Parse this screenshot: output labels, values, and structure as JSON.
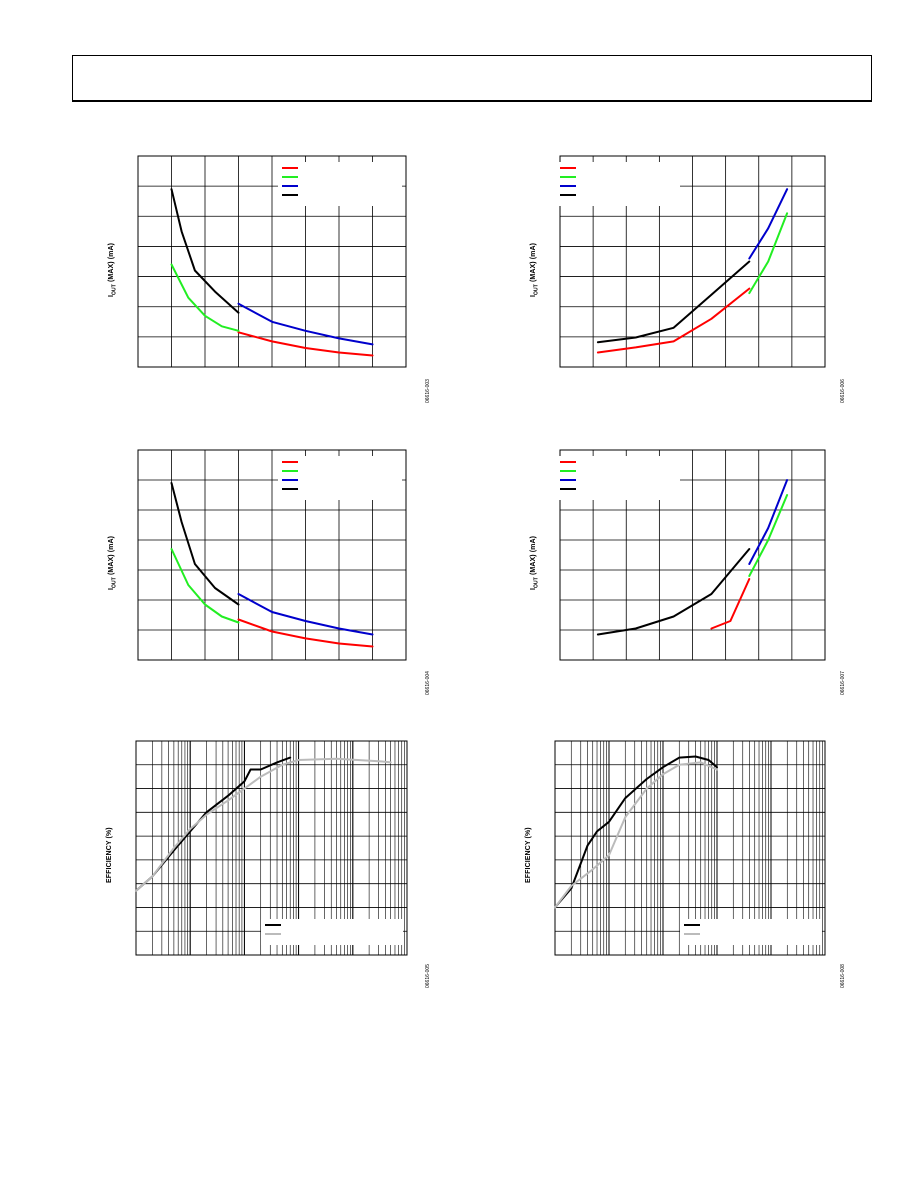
{
  "page": {
    "header": ""
  },
  "colors": {
    "red": "#ff0000",
    "green": "#22ee22",
    "blue": "#0000cc",
    "black": "#000000",
    "gray": "#bbbbbb"
  },
  "chart_data": [
    {
      "id": "fig-003",
      "type": "line",
      "ylabel_main": "I",
      "ylabel_sub": "OUT",
      "ylabel_rest": " (MAX) (mA)",
      "figure_id": "06616-003",
      "grid": true,
      "xscale": "linear",
      "xlim": [
        0,
        8
      ],
      "ylim": [
        0,
        7
      ],
      "legend": "top-right",
      "series": [
        {
          "color": "#ff0000",
          "points": [
            [
              3,
              1.15
            ],
            [
              4,
              0.85
            ],
            [
              5,
              0.63
            ],
            [
              6,
              0.48
            ],
            [
              7,
              0.38
            ]
          ]
        },
        {
          "color": "#22ee22",
          "points": [
            [
              1,
              3.4
            ],
            [
              1.5,
              2.3
            ],
            [
              2,
              1.7
            ],
            [
              2.5,
              1.35
            ],
            [
              3,
              1.2
            ]
          ]
        },
        {
          "color": "#0000cc",
          "points": [
            [
              3,
              2.1
            ],
            [
              4,
              1.5
            ],
            [
              5,
              1.2
            ],
            [
              6,
              0.95
            ],
            [
              7,
              0.75
            ]
          ]
        },
        {
          "color": "#000000",
          "points": [
            [
              1,
              5.9
            ],
            [
              1.3,
              4.5
            ],
            [
              1.7,
              3.2
            ],
            [
              2.3,
              2.5
            ],
            [
              3,
              1.8
            ]
          ]
        }
      ]
    },
    {
      "id": "fig-006",
      "type": "line",
      "ylabel_main": "I",
      "ylabel_sub": "OUT",
      "ylabel_rest": " (MAX) (mA)",
      "figure_id": "06616-006",
      "grid": true,
      "xscale": "linear",
      "xlim": [
        0,
        7
      ],
      "ylim": [
        0,
        7
      ],
      "legend": "top-left",
      "series": [
        {
          "color": "#ff0000",
          "points": [
            [
              1,
              0.48
            ],
            [
              2,
              0.65
            ],
            [
              3,
              0.85
            ],
            [
              4,
              1.6
            ],
            [
              5,
              2.6
            ]
          ]
        },
        {
          "color": "#22ee22",
          "points": [
            [
              5,
              2.45
            ],
            [
              5.5,
              3.5
            ],
            [
              6,
              5.1
            ]
          ]
        },
        {
          "color": "#0000cc",
          "points": [
            [
              5,
              3.6
            ],
            [
              5.5,
              4.6
            ],
            [
              6,
              5.9
            ]
          ]
        },
        {
          "color": "#000000",
          "points": [
            [
              1,
              0.82
            ],
            [
              2,
              0.98
            ],
            [
              3,
              1.3
            ],
            [
              4,
              2.4
            ],
            [
              5,
              3.5
            ]
          ]
        }
      ]
    },
    {
      "id": "fig-004",
      "type": "line",
      "ylabel_main": "I",
      "ylabel_sub": "OUT",
      "ylabel_rest": " (MAX) (mA)",
      "figure_id": "06616-004",
      "grid": true,
      "xscale": "linear",
      "xlim": [
        0,
        8
      ],
      "ylim": [
        0,
        7
      ],
      "legend": "top-right",
      "series": [
        {
          "color": "#ff0000",
          "points": [
            [
              3,
              1.35
            ],
            [
              4,
              0.95
            ],
            [
              5,
              0.72
            ],
            [
              6,
              0.55
            ],
            [
              7,
              0.45
            ]
          ]
        },
        {
          "color": "#22ee22",
          "points": [
            [
              1,
              3.7
            ],
            [
              1.5,
              2.5
            ],
            [
              2,
              1.85
            ],
            [
              2.5,
              1.45
            ],
            [
              3,
              1.25
            ]
          ]
        },
        {
          "color": "#0000cc",
          "points": [
            [
              3,
              2.2
            ],
            [
              4,
              1.6
            ],
            [
              5,
              1.3
            ],
            [
              6,
              1.05
            ],
            [
              7,
              0.85
            ]
          ]
        },
        {
          "color": "#000000",
          "points": [
            [
              1,
              5.9
            ],
            [
              1.3,
              4.6
            ],
            [
              1.7,
              3.2
            ],
            [
              2.3,
              2.4
            ],
            [
              3,
              1.85
            ]
          ]
        }
      ]
    },
    {
      "id": "fig-007",
      "type": "line",
      "ylabel_main": "I",
      "ylabel_sub": "OUT",
      "ylabel_rest": " (MAX) (mA)",
      "figure_id": "06616-007",
      "grid": true,
      "xscale": "linear",
      "xlim": [
        0,
        7
      ],
      "ylim": [
        0,
        7
      ],
      "legend": "top-left",
      "series": [
        {
          "color": "#ff0000",
          "points": [
            [
              4,
              1.05
            ],
            [
              4.5,
              1.3
            ],
            [
              5,
              2.7
            ]
          ]
        },
        {
          "color": "#22ee22",
          "points": [
            [
              5,
              2.8
            ],
            [
              5.5,
              4.0
            ],
            [
              6,
              5.5
            ]
          ]
        },
        {
          "color": "#0000cc",
          "points": [
            [
              5,
              3.2
            ],
            [
              5.5,
              4.4
            ],
            [
              6,
              6.0
            ]
          ]
        },
        {
          "color": "#000000",
          "points": [
            [
              1,
              0.85
            ],
            [
              2,
              1.05
            ],
            [
              3,
              1.45
            ],
            [
              4,
              2.2
            ],
            [
              5,
              3.7
            ]
          ]
        }
      ]
    },
    {
      "id": "fig-005",
      "type": "line",
      "ylabel_main": "EFFICIENCY (%)",
      "ylabel_sub": "",
      "ylabel_rest": "",
      "figure_id": "06616-005",
      "grid": true,
      "xscale": "log",
      "xlim": [
        0.01,
        1000
      ],
      "ylim": [
        0,
        9
      ],
      "legend": "bottom-right",
      "series": [
        {
          "color": "#000000",
          "points": [
            [
              0.01,
              2.7
            ],
            [
              0.02,
              3.3
            ],
            [
              0.05,
              4.4
            ],
            [
              0.1,
              5.2
            ],
            [
              0.2,
              6.0
            ],
            [
              0.5,
              6.7
            ],
            [
              1.0,
              7.3
            ],
            [
              1.3,
              7.8
            ],
            [
              2.0,
              7.8
            ],
            [
              4.0,
              8.1
            ],
            [
              7.0,
              8.3
            ]
          ]
        },
        {
          "color": "#bbbbbb",
          "points": [
            [
              0.01,
              2.7
            ],
            [
              0.02,
              3.3
            ],
            [
              0.05,
              4.5
            ],
            [
              0.1,
              5.3
            ],
            [
              0.2,
              5.9
            ],
            [
              0.5,
              6.5
            ],
            [
              1.0,
              7.0
            ],
            [
              2.0,
              7.5
            ],
            [
              5.0,
              8.0
            ],
            [
              10.0,
              8.2
            ],
            [
              50.0,
              8.25
            ],
            [
              300.0,
              8.15
            ],
            [
              500.0,
              8.1
            ]
          ]
        }
      ]
    },
    {
      "id": "fig-008",
      "type": "line",
      "ylabel_main": "EFFICIENCY (%)",
      "ylabel_sub": "",
      "ylabel_rest": "",
      "figure_id": "06616-008",
      "grid": true,
      "xscale": "log",
      "xlim": [
        0.01,
        1000
      ],
      "ylim": [
        0,
        9
      ],
      "legend": "bottom-right",
      "series": [
        {
          "color": "#000000",
          "points": [
            [
              0.01,
              2.0
            ],
            [
              0.02,
              2.8
            ],
            [
              0.04,
              4.6
            ],
            [
              0.06,
              5.2
            ],
            [
              0.1,
              5.6
            ],
            [
              0.2,
              6.6
            ],
            [
              0.5,
              7.4
            ],
            [
              1.0,
              7.9
            ],
            [
              2.0,
              8.3
            ],
            [
              4.0,
              8.35
            ],
            [
              7.0,
              8.2
            ],
            [
              10.0,
              7.9
            ]
          ]
        },
        {
          "color": "#bbbbbb",
          "points": [
            [
              0.01,
              2.0
            ],
            [
              0.02,
              2.9
            ],
            [
              0.05,
              3.6
            ],
            [
              0.1,
              4.2
            ],
            [
              0.2,
              5.8
            ],
            [
              0.5,
              7.0
            ],
            [
              1.0,
              7.6
            ],
            [
              2.0,
              8.0
            ],
            [
              5.0,
              8.1
            ],
            [
              10.0,
              7.8
            ]
          ]
        }
      ]
    }
  ]
}
